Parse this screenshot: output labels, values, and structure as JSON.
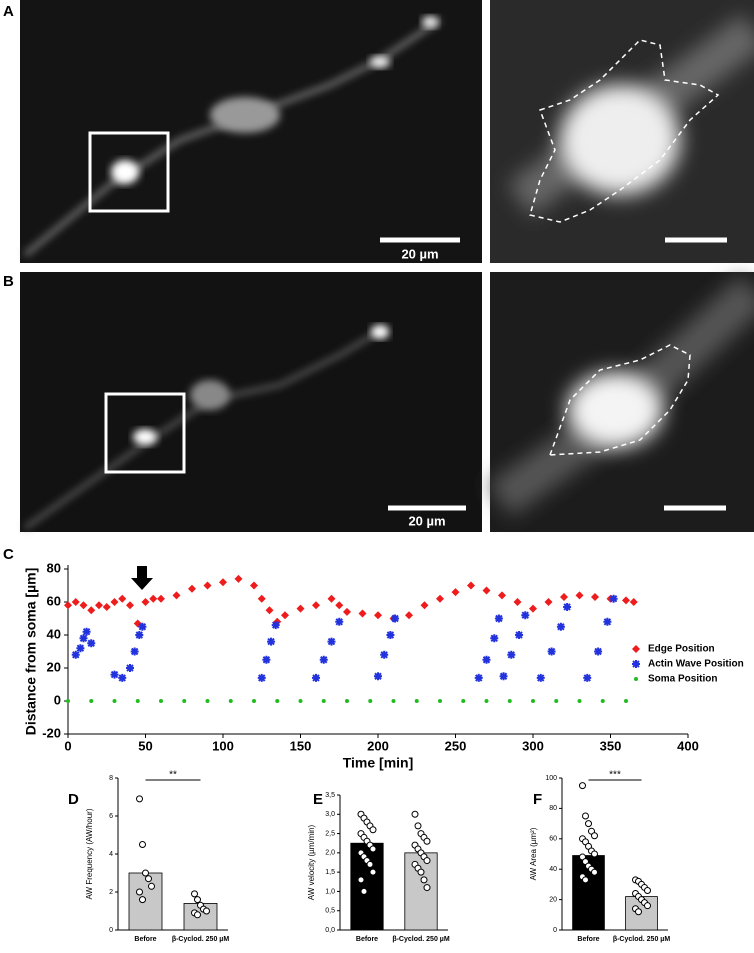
{
  "panel_labels": [
    "A",
    "B",
    "C",
    "D",
    "E",
    "F"
  ],
  "scale_labels": [
    "20 µm",
    "20 µm"
  ],
  "chart_data": [
    {
      "type": "scatter",
      "xlabel": "Time [min]",
      "ylabel": "Distance from soma [µm]",
      "xlim": [
        0,
        400
      ],
      "xticks": [
        0,
        50,
        100,
        150,
        200,
        250,
        300,
        350,
        400
      ],
      "ylim": [
        -20,
        80
      ],
      "yticks": [
        -20,
        0,
        20,
        40,
        60,
        80
      ],
      "legend": "right",
      "series": [
        {
          "name": "Edge Position",
          "color": "#ee1c1c",
          "x": [
            0,
            5,
            10,
            15,
            20,
            25,
            30,
            35,
            40,
            45,
            50,
            55,
            60,
            70,
            80,
            90,
            100,
            110,
            120,
            125,
            130,
            135,
            140,
            150,
            160,
            170,
            175,
            180,
            190,
            200,
            210,
            220,
            230,
            240,
            250,
            260,
            270,
            280,
            290,
            300,
            310,
            320,
            330,
            340,
            350,
            360,
            365
          ],
          "values": [
            58,
            60,
            58,
            55,
            58,
            57,
            60,
            62,
            58,
            47,
            60,
            62,
            62,
            64,
            68,
            70,
            72,
            74,
            70,
            62,
            55,
            48,
            52,
            56,
            58,
            62,
            58,
            54,
            53,
            52,
            50,
            52,
            58,
            62,
            66,
            70,
            67,
            64,
            60,
            56,
            60,
            63,
            64,
            63,
            62,
            61,
            60
          ]
        },
        {
          "name": "Actin Wave Position",
          "color": "#2233dd",
          "x": [
            5,
            8,
            10,
            12,
            15,
            30,
            35,
            40,
            43,
            46,
            48,
            125,
            128,
            131,
            134,
            160,
            165,
            170,
            175,
            200,
            204,
            208,
            211,
            265,
            270,
            275,
            278,
            281,
            286,
            291,
            295,
            305,
            312,
            318,
            322,
            335,
            342,
            348,
            352
          ],
          "values": [
            28,
            32,
            38,
            42,
            35,
            16,
            14,
            20,
            30,
            40,
            45,
            14,
            25,
            36,
            46,
            14,
            25,
            36,
            48,
            15,
            28,
            40,
            50,
            14,
            25,
            38,
            50,
            15,
            28,
            40,
            52,
            14,
            30,
            45,
            57,
            14,
            30,
            48,
            62
          ]
        },
        {
          "name": "Soma Position",
          "color": "#22bb22",
          "x": [
            0,
            15,
            30,
            45,
            60,
            75,
            90,
            105,
            120,
            135,
            150,
            165,
            180,
            195,
            210,
            225,
            240,
            255,
            270,
            285,
            300,
            315,
            330,
            345,
            360
          ],
          "values": [
            0,
            0,
            0,
            0,
            0,
            0,
            0,
            0,
            0,
            0,
            0,
            0,
            0,
            0,
            0,
            0,
            0,
            0,
            0,
            0,
            0,
            0,
            0,
            0,
            0
          ]
        }
      ]
    },
    {
      "type": "bar",
      "ylabel": "AW Frequency (AW/hour)",
      "categories": [
        "Before",
        "β-Cyclod. 250 µM"
      ],
      "values": [
        3.0,
        1.4
      ],
      "colors": [
        "#c8c8c8",
        "#c8c8c8"
      ],
      "significance": "**",
      "points": [
        [
          6.9,
          4.5,
          3.0,
          2.7,
          2.3,
          2.0,
          1.6
        ],
        [
          1.9,
          1.6,
          1.3,
          1.1,
          1.0,
          0.9,
          0.8
        ]
      ],
      "ylim": [
        0,
        8
      ],
      "yticks": [
        0,
        2,
        4,
        6,
        8
      ]
    },
    {
      "type": "bar",
      "ylabel": "AW velocity (µm/min)",
      "categories": [
        "Before",
        "β-Cyclod. 250 µM"
      ],
      "values": [
        2.25,
        2.0
      ],
      "colors": [
        "#000000",
        "#c8c8c8"
      ],
      "points": [
        [
          3.0,
          2.9,
          2.8,
          2.7,
          2.6,
          2.5,
          2.4,
          2.3,
          2.2,
          2.1,
          2.0,
          1.9,
          1.8,
          1.7,
          1.5,
          1.3,
          1.0
        ],
        [
          3.0,
          2.7,
          2.5,
          2.4,
          2.3,
          2.2,
          2.1,
          2.0,
          1.9,
          1.8,
          1.7,
          1.6,
          1.5,
          1.3,
          1.1
        ]
      ],
      "ylim": [
        0,
        3.5
      ],
      "yticks": [
        {
          "value": 0,
          "label": "0,0"
        },
        {
          "value": 0.5,
          "label": "0,5"
        },
        {
          "value": 1,
          "label": "1,0"
        },
        {
          "value": 1.5,
          "label": "1,5"
        },
        {
          "value": 2,
          "label": "2,0"
        },
        {
          "value": 2.5,
          "label": "2,5"
        },
        {
          "value": 3,
          "label": "3,0"
        },
        {
          "value": 3.5,
          "label": "3,5"
        }
      ]
    },
    {
      "type": "bar",
      "ylabel": "AW Area (µm²)",
      "categories": [
        "Before",
        "β-Cyclod. 250 µM"
      ],
      "values": [
        49,
        22
      ],
      "colors": [
        "#000000",
        "#c8c8c8"
      ],
      "significance": "***",
      "points": [
        [
          95,
          75,
          70,
          65,
          62,
          60,
          58,
          55,
          52,
          50,
          48,
          45,
          42,
          40,
          38,
          35,
          33
        ],
        [
          33,
          32,
          30,
          28,
          26,
          24,
          22,
          20,
          18,
          16,
          14,
          12
        ]
      ],
      "ylim": [
        0,
        100
      ],
      "yticks": [
        0,
        20,
        40,
        60,
        80,
        100
      ]
    }
  ]
}
